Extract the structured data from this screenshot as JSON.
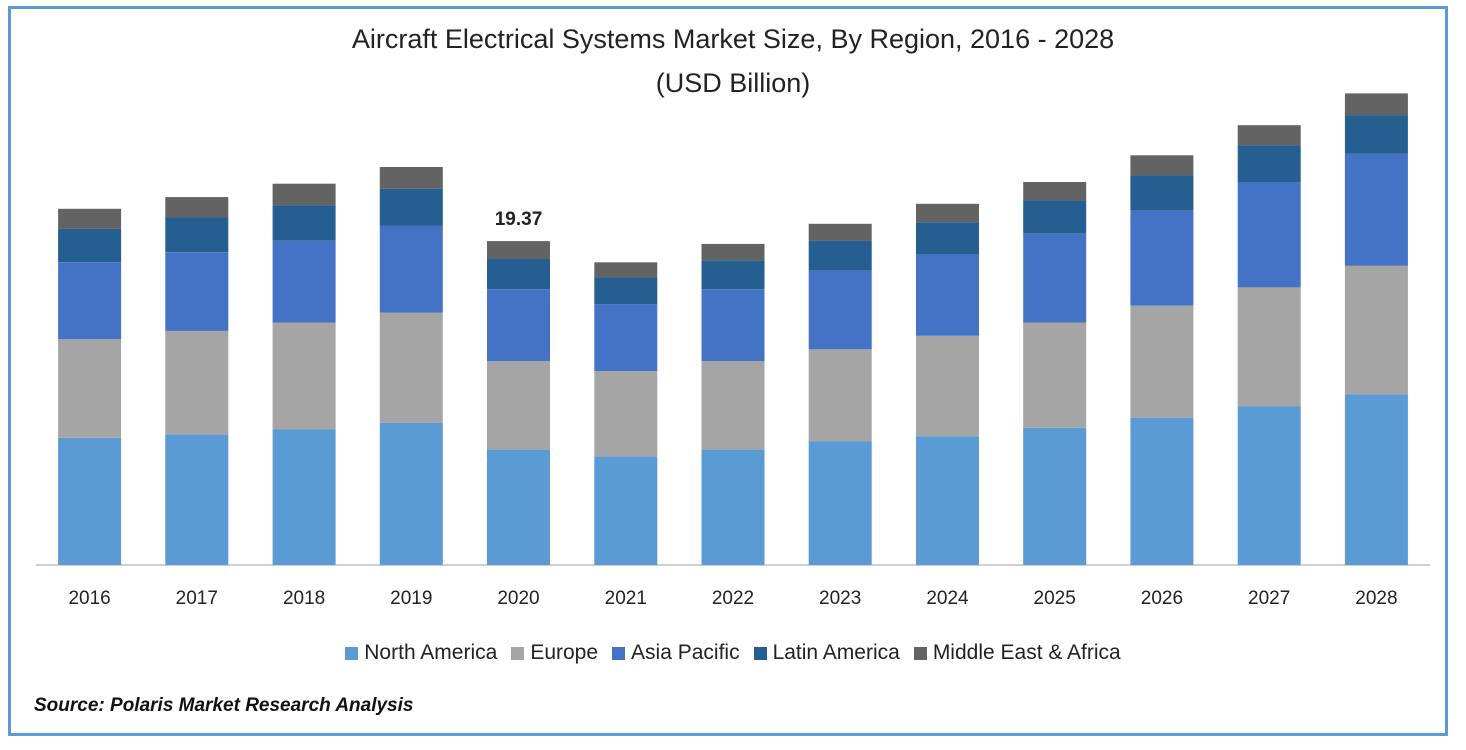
{
  "chart_data": {
    "type": "bar",
    "stacked": true,
    "title": "Aircraft Electrical Systems Market Size, By Region, 2016 - 2028",
    "subtitle": "(USD Billion)",
    "categories": [
      "2016",
      "2017",
      "2018",
      "2019",
      "2020",
      "2021",
      "2022",
      "2023",
      "2024",
      "2025",
      "2026",
      "2027",
      "2028"
    ],
    "series": [
      {
        "name": "North America",
        "color": "#5b9bd5",
        "values": [
          7.6,
          7.8,
          8.1,
          8.5,
          6.9,
          6.5,
          6.9,
          7.4,
          7.7,
          8.2,
          8.8,
          9.5,
          10.2
        ]
      },
      {
        "name": "Europe",
        "color": "#a5a5a5",
        "values": [
          5.9,
          6.2,
          6.4,
          6.6,
          5.3,
          5.1,
          5.3,
          5.5,
          6.0,
          6.3,
          6.7,
          7.1,
          7.7
        ]
      },
      {
        "name": "Asia Pacific",
        "color": "#4472c4",
        "values": [
          4.6,
          4.7,
          4.9,
          5.2,
          4.3,
          4.0,
          4.3,
          4.7,
          4.9,
          5.3,
          5.7,
          6.3,
          6.7
        ]
      },
      {
        "name": "Latin America",
        "color": "#255e91",
        "values": [
          2.0,
          2.1,
          2.1,
          2.2,
          1.8,
          1.6,
          1.7,
          1.8,
          1.9,
          2.0,
          2.1,
          2.2,
          2.3
        ]
      },
      {
        "name": "Middle East & Africa",
        "color": "#636363",
        "values": [
          1.2,
          1.2,
          1.3,
          1.3,
          1.07,
          0.9,
          1.0,
          1.0,
          1.1,
          1.1,
          1.2,
          1.2,
          1.3
        ]
      }
    ],
    "data_labels": [
      {
        "category": "2020",
        "text": "19.37"
      }
    ],
    "ylim": [
      0,
      29
    ],
    "grid": false,
    "legend_position": "bottom",
    "source": "Source: Polaris  Market Research Analysis"
  }
}
